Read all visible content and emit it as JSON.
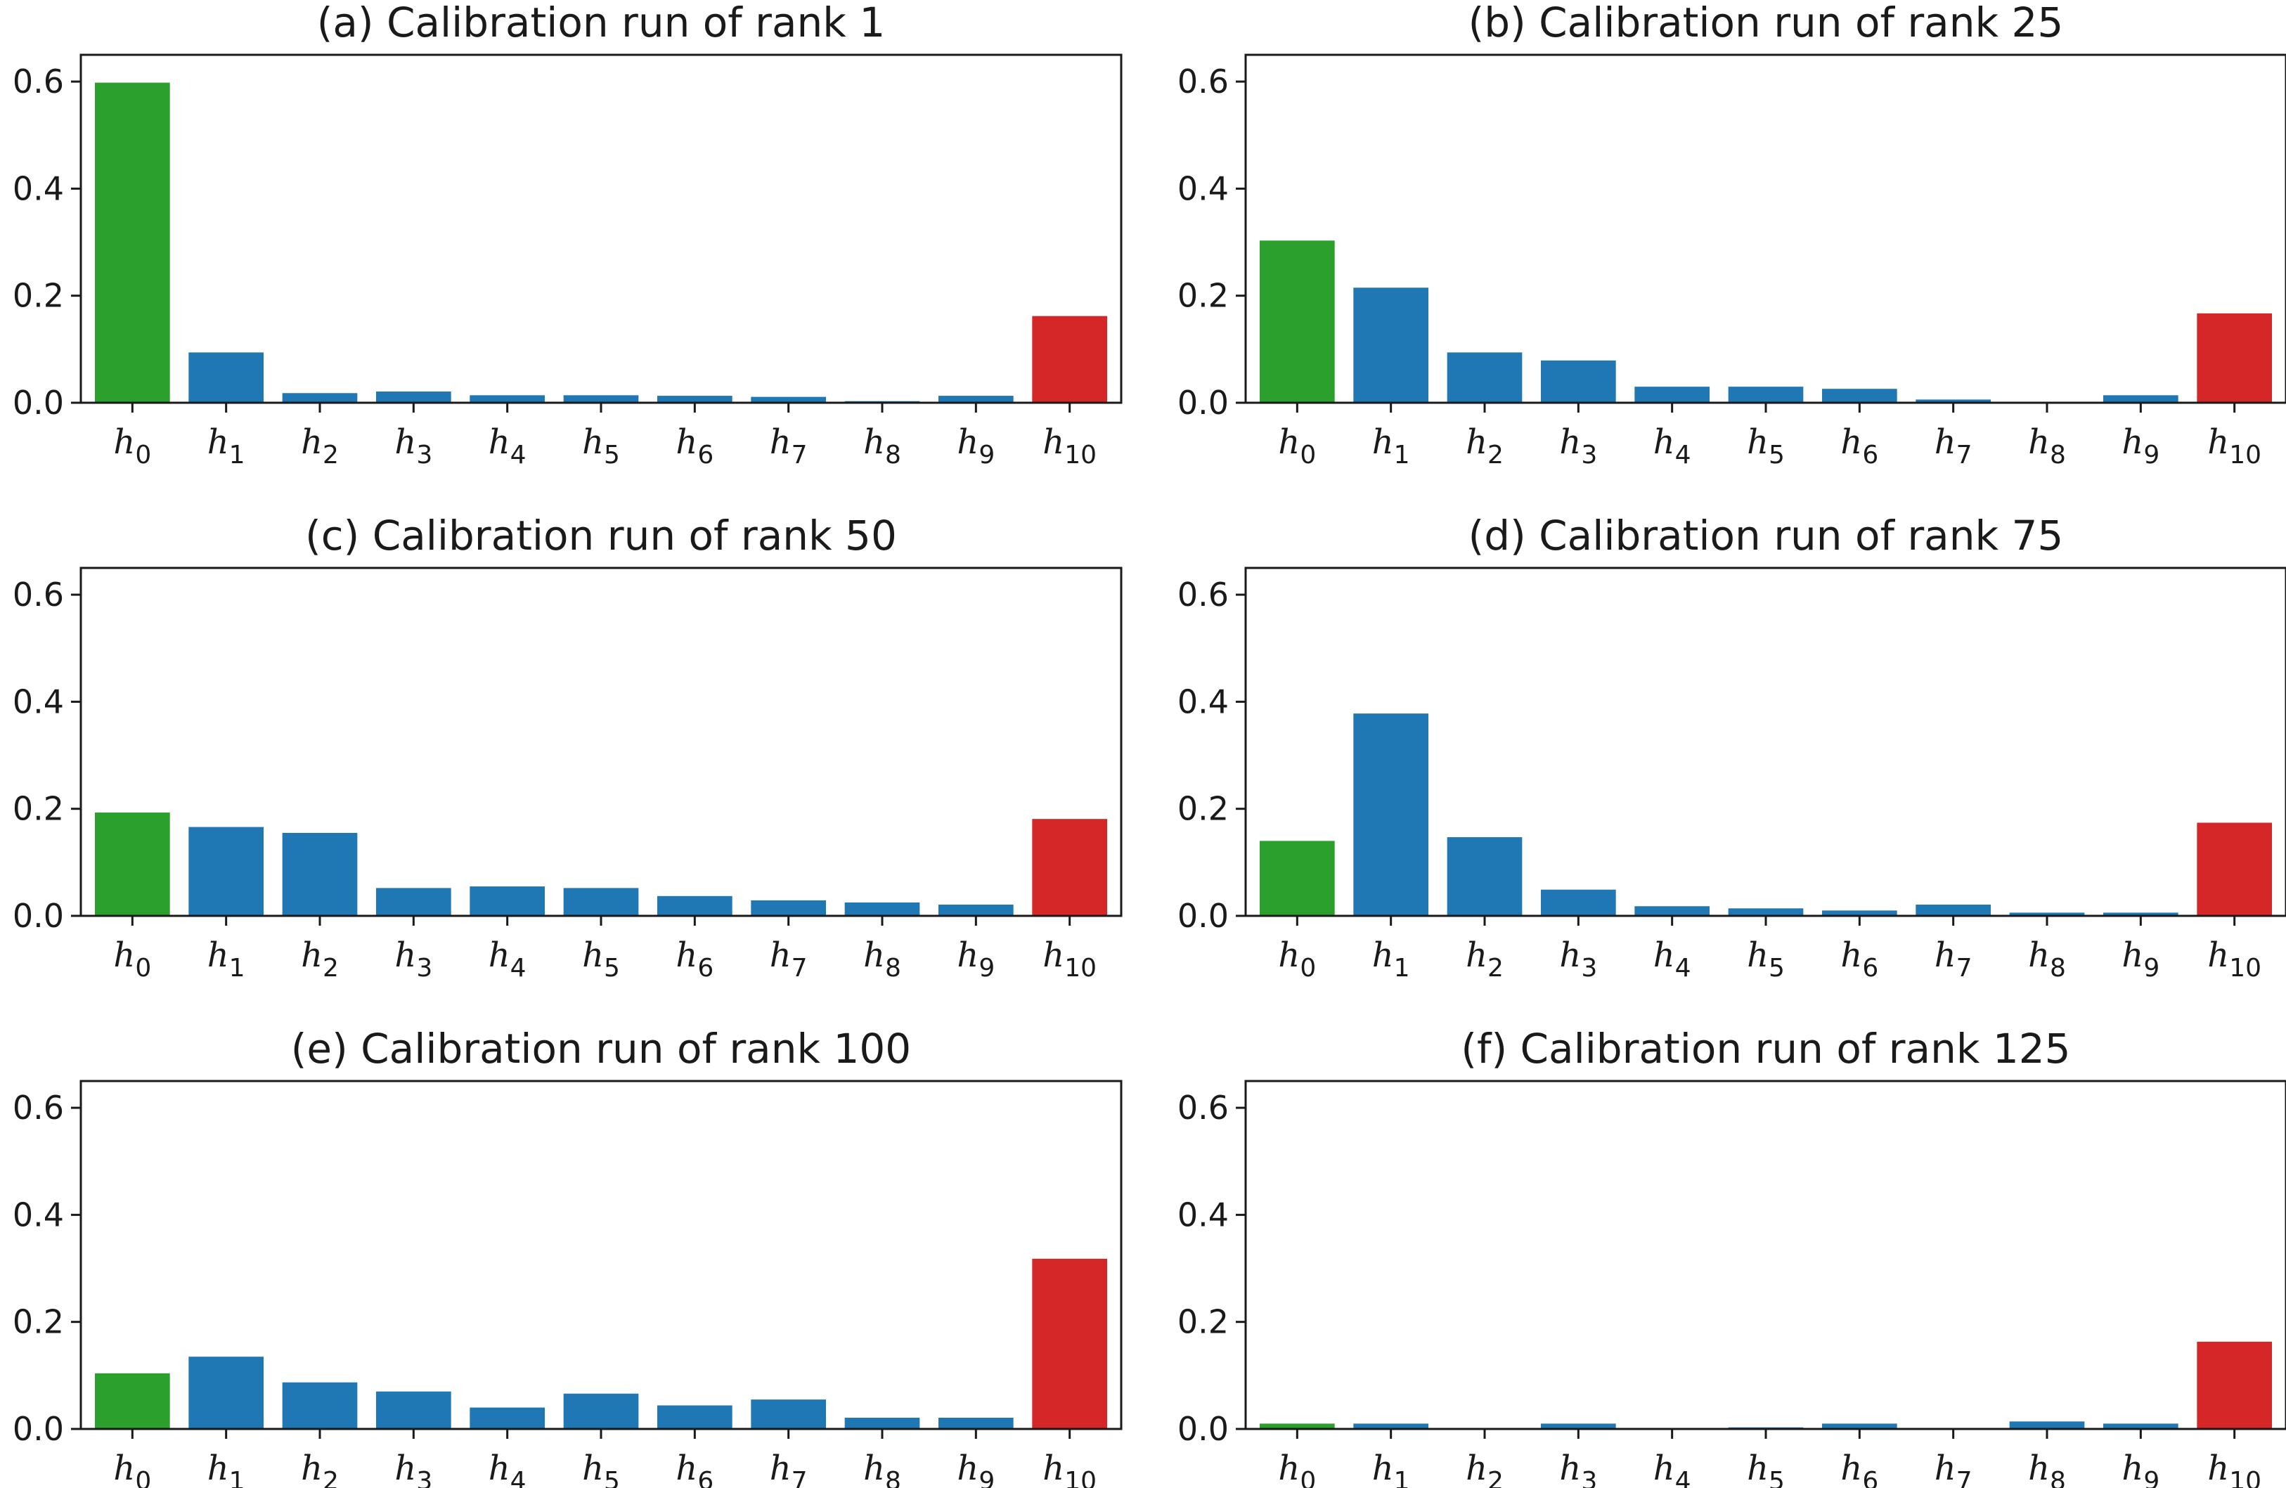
{
  "chart_data": [
    {
      "type": "bar",
      "title": "(a) Calibration run of rank 1",
      "categories": [
        "h0",
        "h1",
        "h2",
        "h3",
        "h4",
        "h5",
        "h6",
        "h7",
        "h8",
        "h9",
        "h10"
      ],
      "values": [
        0.598,
        0.094,
        0.018,
        0.021,
        0.014,
        0.014,
        0.013,
        0.011,
        0.003,
        0.013,
        0.162
      ],
      "ylim": [
        0,
        0.65
      ],
      "yticks": [
        "0.0",
        "0.2",
        "0.4",
        "0.6"
      ],
      "colors": [
        "#2ca02c",
        "#1f77b4",
        "#1f77b4",
        "#1f77b4",
        "#1f77b4",
        "#1f77b4",
        "#1f77b4",
        "#1f77b4",
        "#1f77b4",
        "#1f77b4",
        "#d62728"
      ]
    },
    {
      "type": "bar",
      "title": "(b) Calibration run of rank 25",
      "categories": [
        "h0",
        "h1",
        "h2",
        "h3",
        "h4",
        "h5",
        "h6",
        "h7",
        "h8",
        "h9",
        "h10"
      ],
      "values": [
        0.303,
        0.215,
        0.094,
        0.079,
        0.03,
        0.03,
        0.026,
        0.006,
        0.001,
        0.014,
        0.167
      ],
      "ylim": [
        0,
        0.65
      ],
      "yticks": [
        "0.0",
        "0.2",
        "0.4",
        "0.6"
      ],
      "colors": [
        "#2ca02c",
        "#1f77b4",
        "#1f77b4",
        "#1f77b4",
        "#1f77b4",
        "#1f77b4",
        "#1f77b4",
        "#1f77b4",
        "#1f77b4",
        "#1f77b4",
        "#d62728"
      ]
    },
    {
      "type": "bar",
      "title": "(c) Calibration run of rank 50",
      "categories": [
        "h0",
        "h1",
        "h2",
        "h3",
        "h4",
        "h5",
        "h6",
        "h7",
        "h8",
        "h9",
        "h10"
      ],
      "values": [
        0.193,
        0.166,
        0.155,
        0.052,
        0.055,
        0.052,
        0.037,
        0.029,
        0.025,
        0.021,
        0.181
      ],
      "ylim": [
        0,
        0.65
      ],
      "yticks": [
        "0.0",
        "0.2",
        "0.4",
        "0.6"
      ],
      "colors": [
        "#2ca02c",
        "#1f77b4",
        "#1f77b4",
        "#1f77b4",
        "#1f77b4",
        "#1f77b4",
        "#1f77b4",
        "#1f77b4",
        "#1f77b4",
        "#1f77b4",
        "#d62728"
      ]
    },
    {
      "type": "bar",
      "title": "(d) Calibration run of rank 75",
      "categories": [
        "h0",
        "h1",
        "h2",
        "h3",
        "h4",
        "h5",
        "h6",
        "h7",
        "h8",
        "h9",
        "h10"
      ],
      "values": [
        0.14,
        0.378,
        0.147,
        0.049,
        0.018,
        0.014,
        0.01,
        0.021,
        0.006,
        0.006,
        0.174
      ],
      "ylim": [
        0,
        0.65
      ],
      "yticks": [
        "0.0",
        "0.2",
        "0.4",
        "0.6"
      ],
      "colors": [
        "#2ca02c",
        "#1f77b4",
        "#1f77b4",
        "#1f77b4",
        "#1f77b4",
        "#1f77b4",
        "#1f77b4",
        "#1f77b4",
        "#1f77b4",
        "#1f77b4",
        "#d62728"
      ]
    },
    {
      "type": "bar",
      "title": "(e) Calibration run of rank 100",
      "categories": [
        "h0",
        "h1",
        "h2",
        "h3",
        "h4",
        "h5",
        "h6",
        "h7",
        "h8",
        "h9",
        "h10"
      ],
      "values": [
        0.104,
        0.135,
        0.087,
        0.07,
        0.04,
        0.066,
        0.044,
        0.055,
        0.021,
        0.021,
        0.318
      ],
      "ylim": [
        0,
        0.65
      ],
      "yticks": [
        "0.0",
        "0.2",
        "0.4",
        "0.6"
      ],
      "colors": [
        "#2ca02c",
        "#1f77b4",
        "#1f77b4",
        "#1f77b4",
        "#1f77b4",
        "#1f77b4",
        "#1f77b4",
        "#1f77b4",
        "#1f77b4",
        "#1f77b4",
        "#d62728"
      ]
    },
    {
      "type": "bar",
      "title": "(f) Calibration run of rank 125",
      "categories": [
        "h0",
        "h1",
        "h2",
        "h3",
        "h4",
        "h5",
        "h6",
        "h7",
        "h8",
        "h9",
        "h10"
      ],
      "values": [
        0.01,
        0.01,
        0.0,
        0.01,
        0.0,
        0.003,
        0.01,
        0.0,
        0.014,
        0.01,
        0.163
      ],
      "ylim": [
        0,
        0.65
      ],
      "yticks": [
        "0.0",
        "0.2",
        "0.4",
        "0.6"
      ],
      "colors": [
        "#2ca02c",
        "#1f77b4",
        "#1f77b4",
        "#1f77b4",
        "#1f77b4",
        "#1f77b4",
        "#1f77b4",
        "#1f77b4",
        "#1f77b4",
        "#1f77b4",
        "#d62728"
      ]
    }
  ]
}
